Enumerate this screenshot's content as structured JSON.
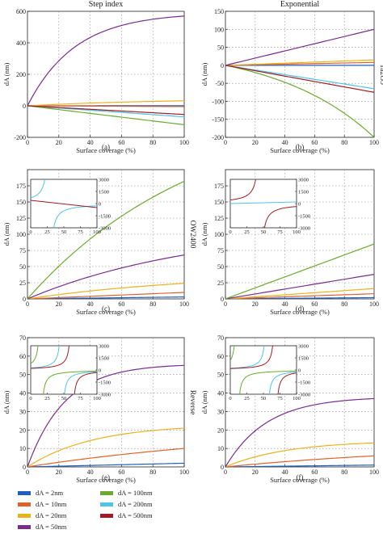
{
  "columns": [
    "Step index",
    "Exponential"
  ],
  "row_labels": [
    "Ta2O5",
    "OW2400",
    "Reverse"
  ],
  "legend": [
    {
      "label": "dA = 2nm",
      "color": "#1f5fbf"
    },
    {
      "label": "dA = 10nm",
      "color": "#e0622b"
    },
    {
      "label": "dA = 20nm",
      "color": "#e8b21e"
    },
    {
      "label": "dA = 50nm",
      "color": "#7a2d8f"
    },
    {
      "label": "dA = 100nm",
      "color": "#6aab2e"
    },
    {
      "label": "dA = 200nm",
      "color": "#4fc3e8"
    },
    {
      "label": "dA = 500nm",
      "color": "#a01c22"
    }
  ],
  "chart_data": [
    {
      "type": "line",
      "panel": "(a)",
      "title": "Step index",
      "xlabel": "Surface coverage (%)",
      "ylabel": "dA (nm)",
      "xlim": [
        0,
        100
      ],
      "ylim": [
        -200,
        600
      ],
      "xticks": [
        0,
        20,
        40,
        60,
        80,
        100
      ],
      "yticks": [
        -200,
        0,
        200,
        400,
        600
      ],
      "grid": true,
      "series": [
        {
          "name": "dA = 2nm",
          "color": "#1f5fbf",
          "end": 1,
          "curve": 0
        },
        {
          "name": "dA = 10nm",
          "color": "#e0622b",
          "end": -5,
          "curve": 0
        },
        {
          "name": "dA = 20nm",
          "color": "#e8b21e",
          "end": 32,
          "curve": 0.2
        },
        {
          "name": "dA = 50nm",
          "color": "#7a2d8f",
          "end": 570,
          "curve": 0.55
        },
        {
          "name": "dA = 100nm",
          "color": "#6aab2e",
          "end": -120,
          "curve": 0
        },
        {
          "name": "dA = 200nm",
          "color": "#4fc3e8",
          "end": -70,
          "curve": 0
        },
        {
          "name": "dA = 500nm",
          "color": "#a01c22",
          "end": -55,
          "curve": 0
        }
      ]
    },
    {
      "type": "line",
      "panel": "(b)",
      "title": "Exponential",
      "row_label": "Ta2O5",
      "xlabel": "Surface coverage (%)",
      "ylabel": "dA (nm)",
      "xlim": [
        0,
        100
      ],
      "ylim": [
        -200,
        150
      ],
      "xticks": [
        0,
        20,
        40,
        60,
        80,
        100
      ],
      "yticks": [
        -200,
        -150,
        -100,
        -50,
        0,
        50,
        100,
        150
      ],
      "grid": true,
      "series": [
        {
          "name": "dA = 2nm",
          "color": "#1f5fbf",
          "end": 0,
          "curve": 0
        },
        {
          "name": "dA = 10nm",
          "color": "#e0622b",
          "end": 8,
          "curve": 0
        },
        {
          "name": "dA = 20nm",
          "color": "#e8b21e",
          "end": 15,
          "curve": 0
        },
        {
          "name": "dA = 50nm",
          "color": "#7a2d8f",
          "end": 100,
          "curve": 0
        },
        {
          "name": "dA = 100nm",
          "color": "#6aab2e",
          "end": -200,
          "curve": -0.25
        },
        {
          "name": "dA = 200nm",
          "color": "#4fc3e8",
          "end": -65,
          "curve": 0
        },
        {
          "name": "dA = 500nm",
          "color": "#a01c22",
          "end": -75,
          "curve": 0
        }
      ]
    },
    {
      "type": "line",
      "panel": "(c)",
      "row_label": "OW2400",
      "xlabel": "Surface coverage (%)",
      "ylabel": "dA (nm)",
      "xlim": [
        0,
        100
      ],
      "ylim": [
        0,
        200
      ],
      "xticks": [
        0,
        20,
        40,
        60,
        80,
        100
      ],
      "yticks": [
        0,
        25,
        50,
        75,
        100,
        125,
        150,
        175
      ],
      "grid": true,
      "series": [
        {
          "name": "dA = 2nm",
          "color": "#1f5fbf",
          "end": 3,
          "curve": 0
        },
        {
          "name": "dA = 10nm",
          "color": "#e0622b",
          "end": 10,
          "curve": 0
        },
        {
          "name": "dA = 20nm",
          "color": "#e8b21e",
          "end": 24,
          "curve": 0.15
        },
        {
          "name": "dA = 50nm",
          "color": "#7a2d8f",
          "end": 68,
          "curve": 0.15
        },
        {
          "name": "dA = 100nm",
          "color": "#6aab2e",
          "end": 182,
          "curve": 0.15
        }
      ],
      "inset": {
        "xlim": [
          0,
          100
        ],
        "ylim": [
          -3000,
          3000
        ],
        "xticks": [
          0,
          25,
          50,
          75,
          100
        ],
        "yticks": [
          -3000,
          -1500,
          0,
          1500,
          3000
        ],
        "series": [
          {
            "name": "dA = 200nm",
            "color": "#4fc3e8",
            "pole": 28,
            "scale": 2500
          },
          {
            "name": "dA = 500nm",
            "color": "#a01c22",
            "pole": null,
            "start": 400,
            "end": -500
          }
        ]
      }
    },
    {
      "type": "line",
      "panel": "(d)",
      "xlabel": "Surface coverage (%)",
      "ylabel": "dA (nm)",
      "xlim": [
        0,
        100
      ],
      "ylim": [
        0,
        200
      ],
      "xticks": [
        0,
        20,
        40,
        60,
        80,
        100
      ],
      "yticks": [
        0,
        25,
        50,
        75,
        100,
        125,
        150,
        175
      ],
      "grid": true,
      "series": [
        {
          "name": "dA = 2nm",
          "color": "#1f5fbf",
          "end": 2,
          "curve": 0
        },
        {
          "name": "dA = 10nm",
          "color": "#e0622b",
          "end": 8,
          "curve": 0
        },
        {
          "name": "dA = 20nm",
          "color": "#e8b21e",
          "end": 16,
          "curve": 0
        },
        {
          "name": "dA = 50nm",
          "color": "#7a2d8f",
          "end": 38,
          "curve": 0
        },
        {
          "name": "dA = 100nm",
          "color": "#6aab2e",
          "end": 85,
          "curve": 0
        }
      ],
      "inset": {
        "xlim": [
          0,
          100
        ],
        "ylim": [
          -3000,
          3000
        ],
        "xticks": [
          0,
          25,
          50,
          75,
          100
        ],
        "yticks": [
          -3000,
          -1500,
          0,
          1500,
          3000
        ],
        "series": [
          {
            "name": "dA = 200nm",
            "color": "#4fc3e8",
            "pole": null,
            "start": 0,
            "end": 200
          },
          {
            "name": "dA = 500nm",
            "color": "#a01c22",
            "pole": 45,
            "scale": 2500
          }
        ]
      }
    },
    {
      "type": "line",
      "panel": "(e)",
      "row_label": "Reverse",
      "xlabel": "Surface coverage (%)",
      "ylabel": "dA (nm)",
      "xlim": [
        0,
        100
      ],
      "ylim": [
        0,
        70
      ],
      "xticks": [
        0,
        20,
        40,
        60,
        80,
        100
      ],
      "yticks": [
        0,
        10,
        20,
        30,
        40,
        50,
        60,
        70
      ],
      "grid": true,
      "series": [
        {
          "name": "dA = 2nm",
          "color": "#1f5fbf",
          "end": 2,
          "curve": 0
        },
        {
          "name": "dA = 10nm",
          "color": "#e0622b",
          "end": 10,
          "curve": 0.1
        },
        {
          "name": "dA = 20nm",
          "color": "#e8b21e",
          "end": 21,
          "curve": 0.4
        },
        {
          "name": "dA = 50nm",
          "color": "#7a2d8f",
          "end": 55,
          "curve": 0.7
        }
      ],
      "inset": {
        "xlim": [
          0,
          100
        ],
        "ylim": [
          -3000,
          3000
        ],
        "xticks": [
          0,
          25,
          50,
          75,
          100
        ],
        "yticks": [
          -3000,
          -1500,
          0,
          1500,
          3000
        ],
        "series": [
          {
            "name": "dA = 100nm",
            "color": "#6aab2e",
            "pole": 15,
            "scale": 1500
          },
          {
            "name": "dA = 200nm",
            "color": "#4fc3e8",
            "pole": 47,
            "scale": 1500
          },
          {
            "name": "dA = 500nm",
            "color": "#a01c22",
            "pole": 62,
            "scale": 1500
          }
        ]
      }
    },
    {
      "type": "line",
      "panel": "(f)",
      "xlabel": "Surface coverage (%)",
      "ylabel": "dA (nm)",
      "xlim": [
        0,
        100
      ],
      "ylim": [
        0,
        70
      ],
      "xticks": [
        0,
        20,
        40,
        60,
        80,
        100
      ],
      "yticks": [
        0,
        10,
        20,
        30,
        40,
        50,
        60,
        70
      ],
      "grid": true,
      "series": [
        {
          "name": "dA = 2nm",
          "color": "#1f5fbf",
          "end": 1,
          "curve": 0
        },
        {
          "name": "dA = 10nm",
          "color": "#e0622b",
          "end": 6,
          "curve": 0.1
        },
        {
          "name": "dA = 20nm",
          "color": "#e8b21e",
          "end": 13,
          "curve": 0.4
        },
        {
          "name": "dA = 50nm",
          "color": "#7a2d8f",
          "end": 37,
          "curve": 0.6
        }
      ],
      "inset": {
        "xlim": [
          0,
          100
        ],
        "ylim": [
          -3000,
          3000
        ],
        "xticks": [
          0,
          25,
          50,
          75,
          100
        ],
        "yticks": [
          -3000,
          -1500,
          0,
          1500,
          3000
        ],
        "series": [
          {
            "name": "dA = 100nm",
            "color": "#6aab2e",
            "pole": 10,
            "scale": 1500
          },
          {
            "name": "dA = 200nm",
            "color": "#4fc3e8",
            "pole": 55,
            "scale": 1500
          },
          {
            "name": "dA = 500nm",
            "color": "#a01c22",
            "pole": 68,
            "scale": 1500
          }
        ]
      }
    }
  ]
}
